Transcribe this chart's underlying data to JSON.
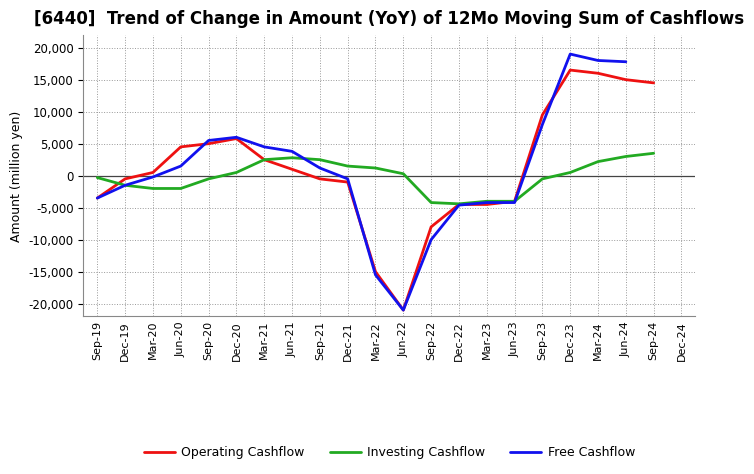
{
  "title": "[6440]  Trend of Change in Amount (YoY) of 12Mo Moving Sum of Cashflows",
  "ylabel": "Amount (million yen)",
  "x_labels": [
    "Sep-19",
    "Dec-19",
    "Mar-20",
    "Jun-20",
    "Sep-20",
    "Dec-20",
    "Mar-21",
    "Jun-21",
    "Sep-21",
    "Dec-21",
    "Mar-22",
    "Jun-22",
    "Sep-22",
    "Dec-22",
    "Mar-23",
    "Jun-23",
    "Sep-23",
    "Dec-23",
    "Mar-24",
    "Jun-24",
    "Sep-24",
    "Dec-24"
  ],
  "operating": [
    -3500,
    -500,
    500,
    4500,
    5000,
    5800,
    2500,
    1000,
    -500,
    -1000,
    -15000,
    -21000,
    -8000,
    -4500,
    -4500,
    -4000,
    9500,
    16500,
    16000,
    15000,
    14500,
    null
  ],
  "investing": [
    -300,
    -1500,
    -2000,
    -2000,
    -500,
    500,
    2500,
    2800,
    2500,
    1500,
    1200,
    300,
    -4200,
    -4400,
    -4000,
    -4000,
    -500,
    500,
    2200,
    3000,
    3500,
    null
  ],
  "free": [
    -3500,
    -1500,
    -200,
    1500,
    5500,
    6000,
    4500,
    3800,
    1200,
    -500,
    -15500,
    -21000,
    -10000,
    -4600,
    -4200,
    -4200,
    8000,
    19000,
    18000,
    17800,
    null,
    null
  ],
  "operating_color": "#ee1111",
  "investing_color": "#22aa22",
  "free_color": "#1111ee",
  "ylim": [
    -22000,
    22000
  ],
  "yticks": [
    -20000,
    -15000,
    -10000,
    -5000,
    0,
    5000,
    10000,
    15000,
    20000
  ],
  "background_color": "#ffffff",
  "grid_color": "#999999",
  "title_fontsize": 12,
  "axis_fontsize": 9,
  "legend_fontsize": 9,
  "linewidth": 2.0
}
